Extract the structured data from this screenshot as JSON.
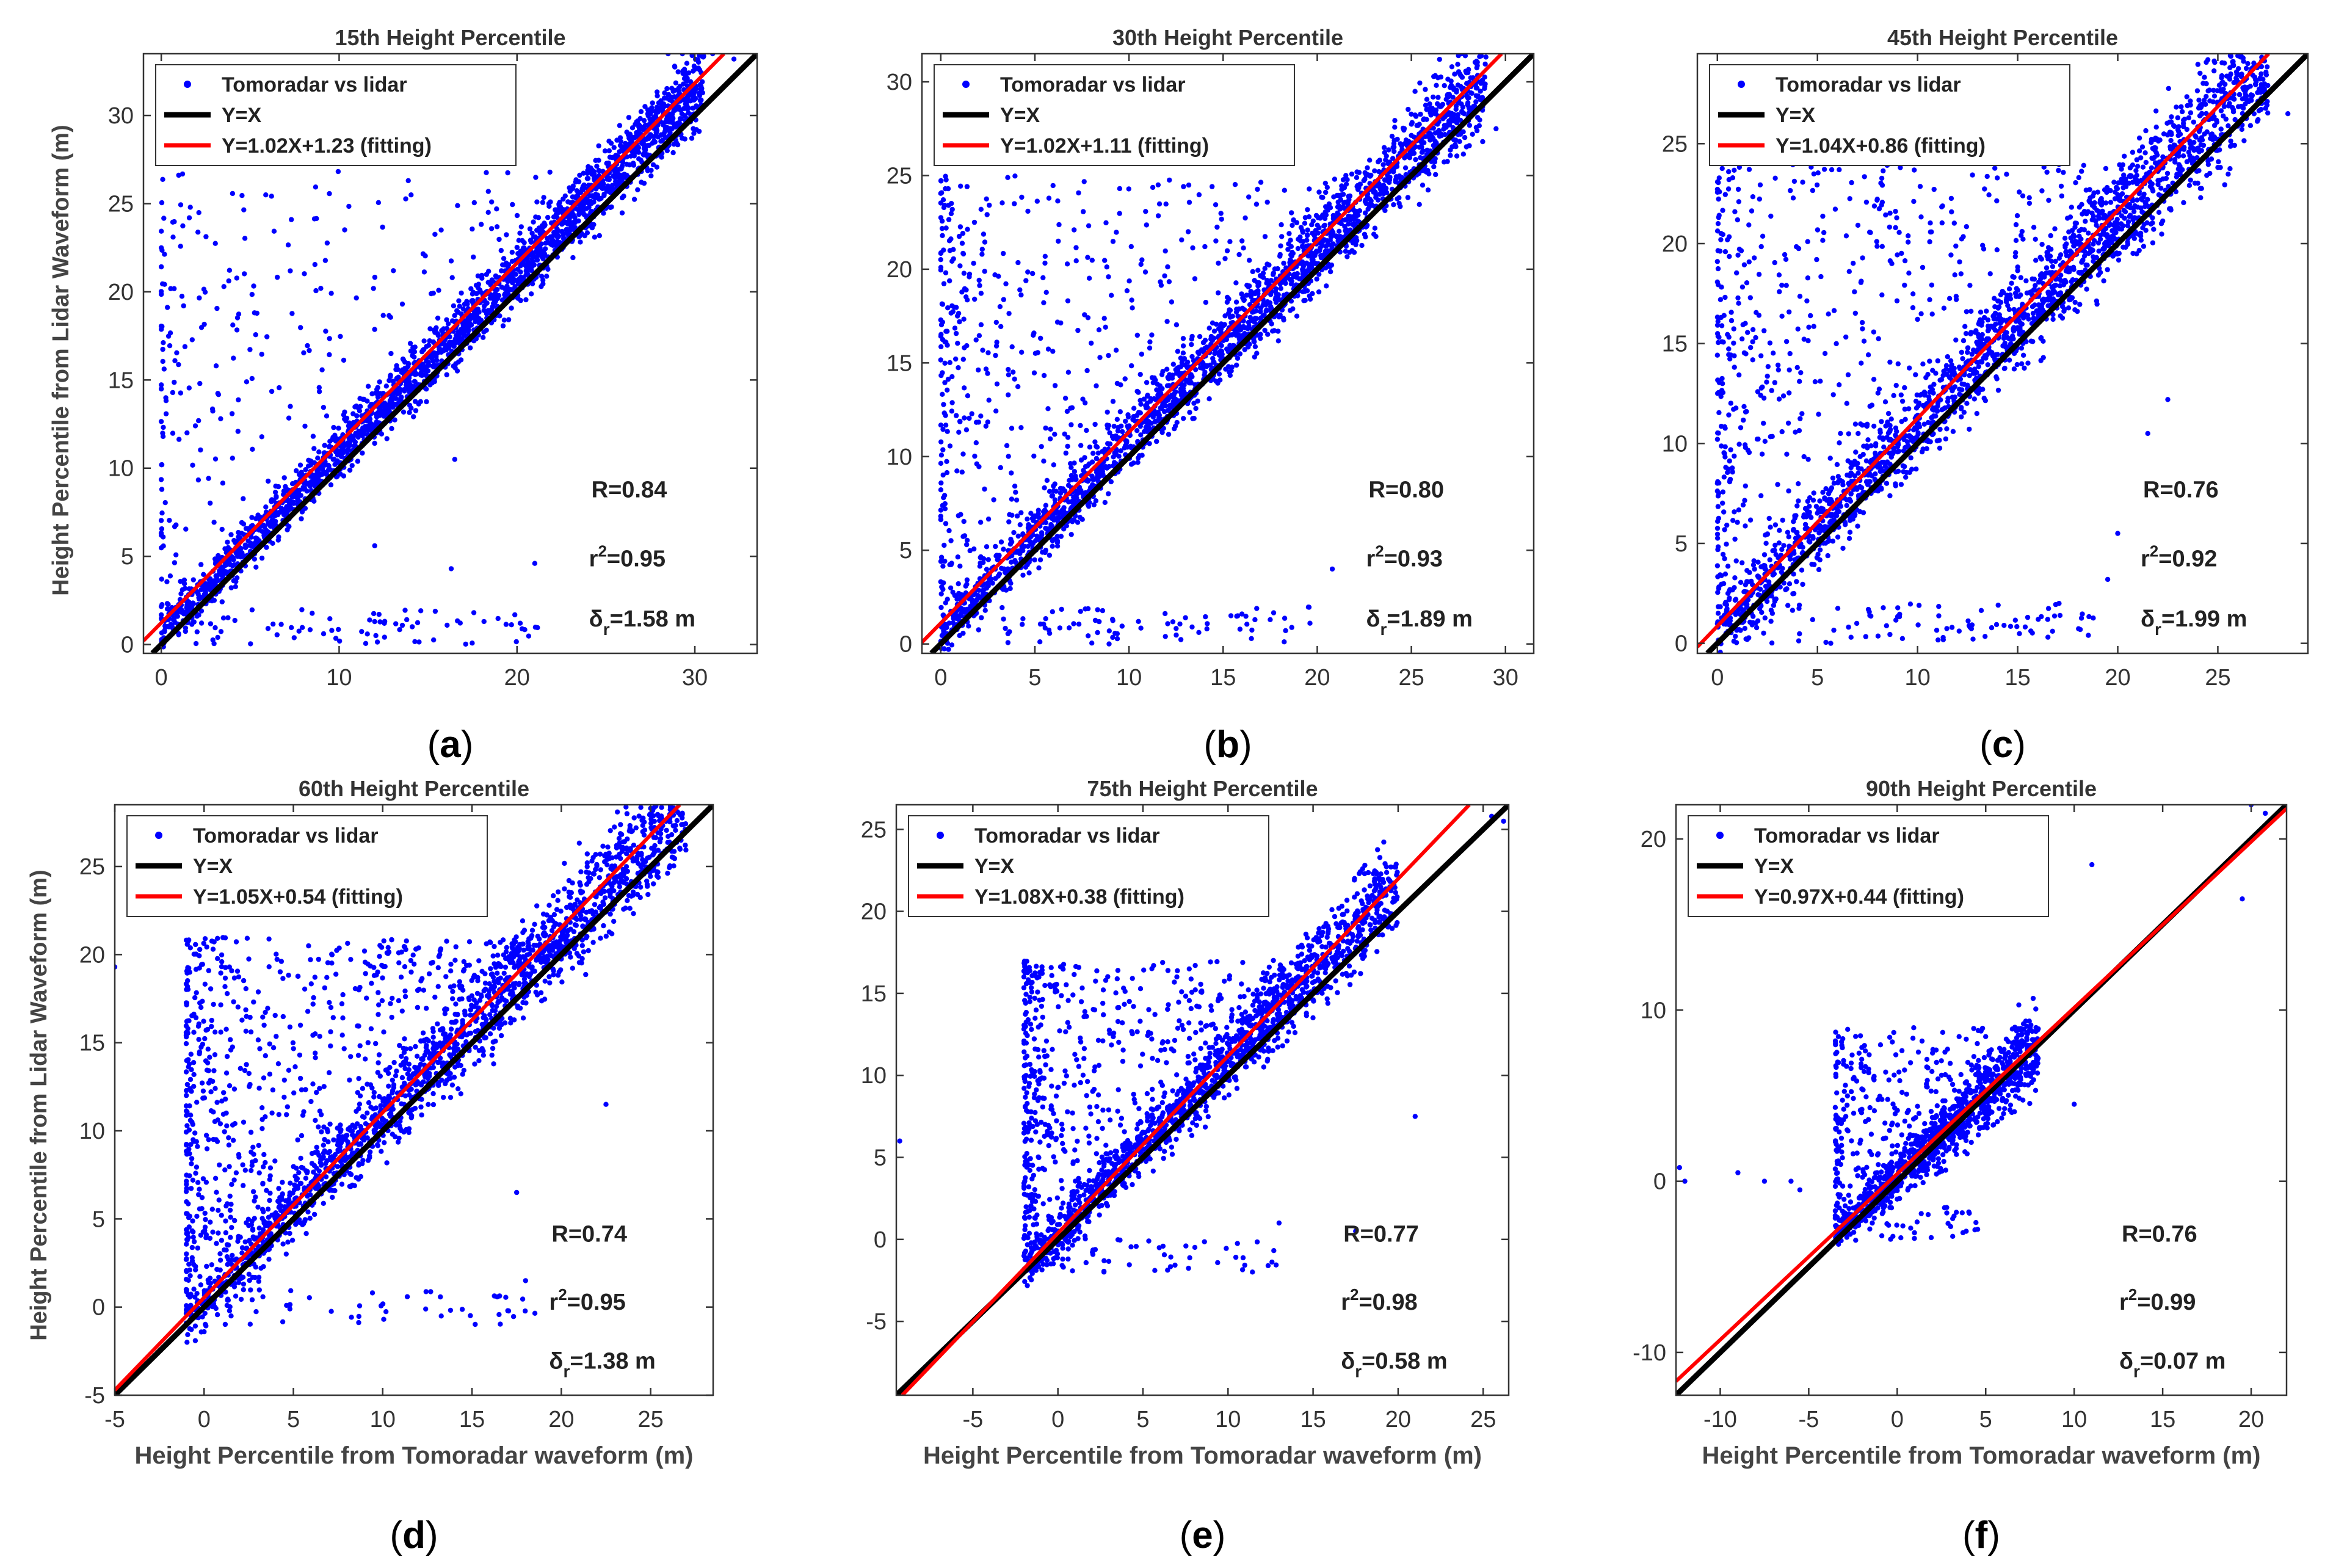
{
  "figure": {
    "y_axis_label": "Height Percentile from Lidar Waveform (m)",
    "x_axis_label": "Height Percentile from Tomoradar waveform (m)"
  },
  "colors": {
    "scatter": "#0000ff",
    "identity": "#000000",
    "fit": "#ff0000"
  },
  "chart_data": [
    {
      "type": "scatter",
      "panel_label": "(a)",
      "panel_letter": "a",
      "title": "15th Height Percentile",
      "xlim": [
        -1,
        33.5
      ],
      "ylim": [
        -0.5,
        33.5
      ],
      "xticks": [
        0,
        10,
        20,
        30
      ],
      "yticks": [
        0,
        5,
        10,
        15,
        20,
        25,
        30
      ],
      "legend": [
        "Tomoradar vs lidar",
        "Y=X",
        "Y=1.02X+1.23 (fitting)"
      ],
      "fit": {
        "slope": 1.02,
        "intercept": 1.23
      },
      "stats": {
        "R": "R=0.84",
        "r2": "=0.95",
        "delta": "=1.58 m"
      },
      "cloud": {
        "n": 2600,
        "min": 0,
        "max": 30.5,
        "spread": 1.4,
        "scatter_frac": 0.11,
        "scatter_min": 0,
        "scatter_max": 27
      },
      "outliers": [
        [
          12,
          1.3
        ],
        [
          16.3,
          4.3
        ],
        [
          21,
          4.6
        ],
        [
          16.5,
          10.5
        ],
        [
          12,
          5.6
        ],
        [
          3.5,
          1.5
        ],
        [
          28.5,
          33.5
        ],
        [
          29.3,
          33.5
        ],
        [
          31,
          33.5
        ],
        [
          32.2,
          33.2
        ]
      ]
    },
    {
      "type": "scatter",
      "panel_label": "(b)",
      "panel_letter": "b",
      "title": "30th Height Percentile",
      "xlim": [
        -1,
        31.5
      ],
      "ylim": [
        -0.5,
        31.5
      ],
      "xticks": [
        0,
        5,
        10,
        15,
        20,
        25,
        30
      ],
      "yticks": [
        0,
        5,
        10,
        15,
        20,
        25,
        30
      ],
      "legend": [
        "Tomoradar vs lidar",
        "Y=X",
        "Y=1.02X+1.11 (fitting)"
      ],
      "fit": {
        "slope": 1.02,
        "intercept": 1.11
      },
      "stats": {
        "R": "R=0.80",
        "r2": "=0.93",
        "delta": "=1.89 m"
      },
      "cloud": {
        "n": 2600,
        "min": 0,
        "max": 29,
        "spread": 1.6,
        "scatter_frac": 0.2,
        "scatter_min": 0,
        "scatter_max": 25
      },
      "outliers": [
        [
          20.8,
          4
        ],
        [
          17.5,
          1.3
        ],
        [
          16,
          1.6
        ],
        [
          13,
          1.4
        ],
        [
          10.5,
          1.2
        ],
        [
          26.5,
          31.2
        ],
        [
          27.5,
          31.4
        ],
        [
          29.5,
          27.5
        ]
      ]
    },
    {
      "type": "scatter",
      "panel_label": "(c)",
      "panel_letter": "c",
      "title": "45th Height Percentile",
      "xlim": [
        -1,
        29.5
      ],
      "ylim": [
        -0.5,
        29.5
      ],
      "xticks": [
        0,
        5,
        10,
        15,
        20,
        25
      ],
      "yticks": [
        0,
        5,
        10,
        15,
        20,
        25
      ],
      "legend": [
        "Tomoradar vs lidar",
        "Y=X",
        "Y=1.04X+0.86 (fitting)"
      ],
      "fit": {
        "slope": 1.04,
        "intercept": 0.86
      },
      "stats": {
        "R": "R=0.76",
        "r2": "=0.92",
        "delta": "=1.99 m"
      },
      "cloud": {
        "n": 2600,
        "min": 0,
        "max": 27.5,
        "spread": 1.9,
        "scatter_frac": 0.24,
        "scatter_min": 0,
        "scatter_max": 24
      },
      "outliers": [
        [
          19.5,
          3.2
        ],
        [
          22.5,
          12.2
        ],
        [
          21.5,
          10.5
        ],
        [
          20,
          5.5
        ],
        [
          16.5,
          1.2
        ],
        [
          15.5,
          1.3
        ],
        [
          24.5,
          29.2
        ],
        [
          26,
          29.4
        ],
        [
          28.5,
          26.5
        ]
      ]
    },
    {
      "type": "scatter",
      "panel_label": "(d)",
      "panel_letter": "d",
      "title": "60th Height Percentile",
      "xlim": [
        -5,
        28.5
      ],
      "ylim": [
        -5,
        28.5
      ],
      "xticks": [
        -5,
        0,
        5,
        10,
        15,
        20,
        25
      ],
      "yticks": [
        -5,
        0,
        5,
        10,
        15,
        20,
        25
      ],
      "legend": [
        "Tomoradar vs lidar",
        "Y=X",
        "Y=1.05X+0.54 (fitting)"
      ],
      "fit": {
        "slope": 1.05,
        "intercept": 0.54
      },
      "stats": {
        "R": "R=0.74",
        "r2": "=0.95",
        "delta": "=1.38 m"
      },
      "cloud": {
        "n": 2400,
        "min": -1,
        "max": 27,
        "spread": 2.0,
        "scatter_frac": 0.3,
        "scatter_min": -1,
        "scatter_max": 21
      },
      "outliers": [
        [
          -5,
          19.3
        ],
        [
          22.5,
          11.5
        ],
        [
          18,
          1.5
        ],
        [
          17.5,
          6.5
        ],
        [
          0,
          -1.4
        ],
        [
          25,
          28.3
        ],
        [
          26.5,
          28.1
        ]
      ]
    },
    {
      "type": "scatter",
      "panel_label": "(e)",
      "panel_letter": "e",
      "title": "75th Height Percentile",
      "xlim": [
        -9.5,
        26.5
      ],
      "ylim": [
        -9.5,
        26.5
      ],
      "xticks": [
        -5,
        0,
        5,
        10,
        15,
        20,
        25
      ],
      "yticks": [
        -5,
        0,
        5,
        10,
        15,
        20,
        25
      ],
      "legend": [
        "Tomoradar vs lidar",
        "Y=X",
        "Y=1.08X+0.38 (fitting)"
      ],
      "fit": {
        "slope": 1.08,
        "intercept": 0.38
      },
      "stats": {
        "R": "R=0.77",
        "r2": "=0.98",
        "delta": "=0.58 m"
      },
      "cloud": {
        "n": 1900,
        "min": -2,
        "max": 20,
        "spread": 1.8,
        "scatter_frac": 0.3,
        "scatter_min": -1,
        "scatter_max": 17
      },
      "outliers": [
        [
          -9.3,
          6
        ],
        [
          21,
          7.5
        ],
        [
          17.5,
          0.5
        ],
        [
          13,
          1
        ],
        [
          25.5,
          25.8
        ],
        [
          26.2,
          25.5
        ]
      ]
    },
    {
      "type": "scatter",
      "panel_label": "(f)",
      "panel_letter": "f",
      "title": "90th  Height Percentile",
      "xlim": [
        -12.5,
        22
      ],
      "ylim": [
        -12.5,
        22
      ],
      "xticks": [
        -10,
        -5,
        0,
        5,
        10,
        15,
        20
      ],
      "yticks": [
        -10,
        0,
        10,
        20
      ],
      "legend": [
        "Tomoradar vs lidar",
        "Y=X",
        "Y=0.97X+0.44 (fitting)"
      ],
      "fit": {
        "slope": 0.97,
        "intercept": 0.44
      },
      "stats": {
        "R": "R=0.76",
        "r2": "=0.99",
        "delta": "=0.07 m"
      },
      "cloud": {
        "n": 1300,
        "min": -3.5,
        "max": 8,
        "spread": 1.6,
        "scatter_frac": 0.22,
        "scatter_min": -2,
        "scatter_max": 9
      },
      "outliers": [
        [
          -12.3,
          0.8
        ],
        [
          -12,
          0
        ],
        [
          -9,
          0.5
        ],
        [
          -7.5,
          0
        ],
        [
          -6,
          0
        ],
        [
          -5.5,
          -0.5
        ],
        [
          11,
          18.5
        ],
        [
          19.5,
          16.5
        ],
        [
          20,
          22
        ],
        [
          20.8,
          21.5
        ],
        [
          10,
          4.5
        ]
      ]
    }
  ]
}
